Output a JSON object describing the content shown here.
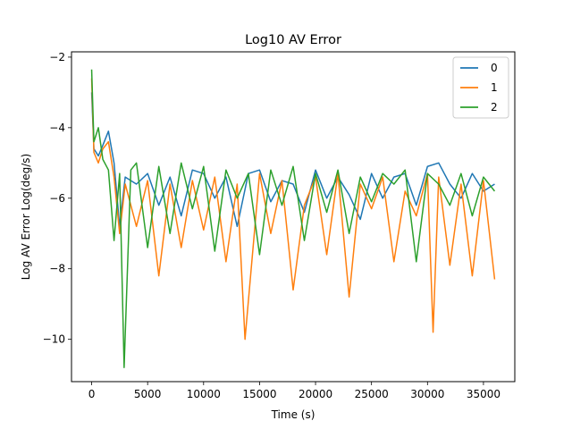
{
  "chart_data": {
    "type": "line",
    "title": "Log10 AV Error",
    "xlabel": "Time (s)",
    "ylabel": "Log AV Error Log(deg/s)",
    "xlim": [
      -1800,
      37800
    ],
    "ylim": [
      -11.2,
      -1.85
    ],
    "xticks": [
      0,
      5000,
      10000,
      15000,
      20000,
      25000,
      30000,
      35000
    ],
    "yticks": [
      -10,
      -8,
      -6,
      -4,
      -2
    ],
    "grid": false,
    "legend_position": "top-right",
    "series": [
      {
        "name": "0",
        "color": "#1f77b4",
        "x": [
          0,
          200,
          600,
          1000,
          1500,
          2000,
          2500,
          3000,
          4000,
          5000,
          6000,
          7000,
          8000,
          9000,
          10000,
          11000,
          12000,
          13000,
          14000,
          15000,
          16000,
          17000,
          18000,
          19000,
          20000,
          21000,
          22000,
          23000,
          24000,
          25000,
          26000,
          27000,
          28000,
          29000,
          30000,
          31000,
          32000,
          33000,
          34000,
          35000,
          36000
        ],
        "y": [
          -3.0,
          -4.6,
          -4.8,
          -4.5,
          -4.1,
          -5.0,
          -6.8,
          -5.4,
          -5.6,
          -5.3,
          -6.2,
          -5.4,
          -6.5,
          -5.2,
          -5.3,
          -6.0,
          -5.4,
          -6.8,
          -5.3,
          -5.2,
          -6.1,
          -5.5,
          -5.6,
          -6.4,
          -5.2,
          -6.0,
          -5.4,
          -5.9,
          -6.6,
          -5.3,
          -6.0,
          -5.4,
          -5.3,
          -6.2,
          -5.1,
          -5.0,
          -5.6,
          -6.0,
          -5.3,
          -5.8,
          -5.6
        ]
      },
      {
        "name": "1",
        "color": "#ff7f0e",
        "x": [
          0,
          200,
          600,
          1000,
          1500,
          2000,
          2500,
          3000,
          4000,
          5000,
          6000,
          7000,
          8000,
          9000,
          10000,
          11000,
          12000,
          13000,
          13700,
          15000,
          16000,
          17000,
          18000,
          19000,
          20000,
          21000,
          22000,
          23000,
          24000,
          25000,
          26000,
          27000,
          28000,
          29000,
          30000,
          30500,
          31000,
          32000,
          33000,
          34000,
          35000,
          36000
        ],
        "y": [
          -2.6,
          -4.7,
          -5.0,
          -4.6,
          -4.4,
          -5.4,
          -7.0,
          -5.6,
          -6.8,
          -5.5,
          -8.2,
          -5.6,
          -7.4,
          -5.5,
          -6.9,
          -5.4,
          -7.8,
          -5.6,
          -10.0,
          -5.3,
          -7.0,
          -5.5,
          -8.6,
          -6.2,
          -5.4,
          -7.6,
          -5.3,
          -8.8,
          -5.6,
          -6.3,
          -5.4,
          -7.8,
          -5.8,
          -6.5,
          -5.3,
          -9.8,
          -5.4,
          -7.9,
          -5.6,
          -8.2,
          -5.5,
          -8.3
        ]
      },
      {
        "name": "2",
        "color": "#2ca02c",
        "x": [
          0,
          200,
          600,
          1000,
          1500,
          2000,
          2500,
          2900,
          3500,
          4000,
          5000,
          6000,
          7000,
          8000,
          9000,
          10000,
          11000,
          12000,
          13000,
          14000,
          15000,
          16000,
          17000,
          18000,
          19000,
          20000,
          21000,
          22000,
          23000,
          24000,
          25000,
          26000,
          27000,
          28000,
          29000,
          30000,
          31000,
          32000,
          33000,
          34000,
          35000,
          36000
        ],
        "y": [
          -2.35,
          -4.4,
          -4.0,
          -4.9,
          -5.2,
          -7.2,
          -5.3,
          -10.8,
          -5.2,
          -5.0,
          -7.4,
          -5.1,
          -7.0,
          -5.0,
          -6.3,
          -5.1,
          -7.5,
          -5.2,
          -6.0,
          -5.3,
          -7.6,
          -5.2,
          -6.2,
          -5.1,
          -7.2,
          -5.3,
          -6.4,
          -5.2,
          -7.0,
          -5.4,
          -6.1,
          -5.3,
          -5.6,
          -5.2,
          -7.8,
          -5.3,
          -5.6,
          -6.2,
          -5.3,
          -6.5,
          -5.4,
          -5.8
        ]
      }
    ]
  }
}
